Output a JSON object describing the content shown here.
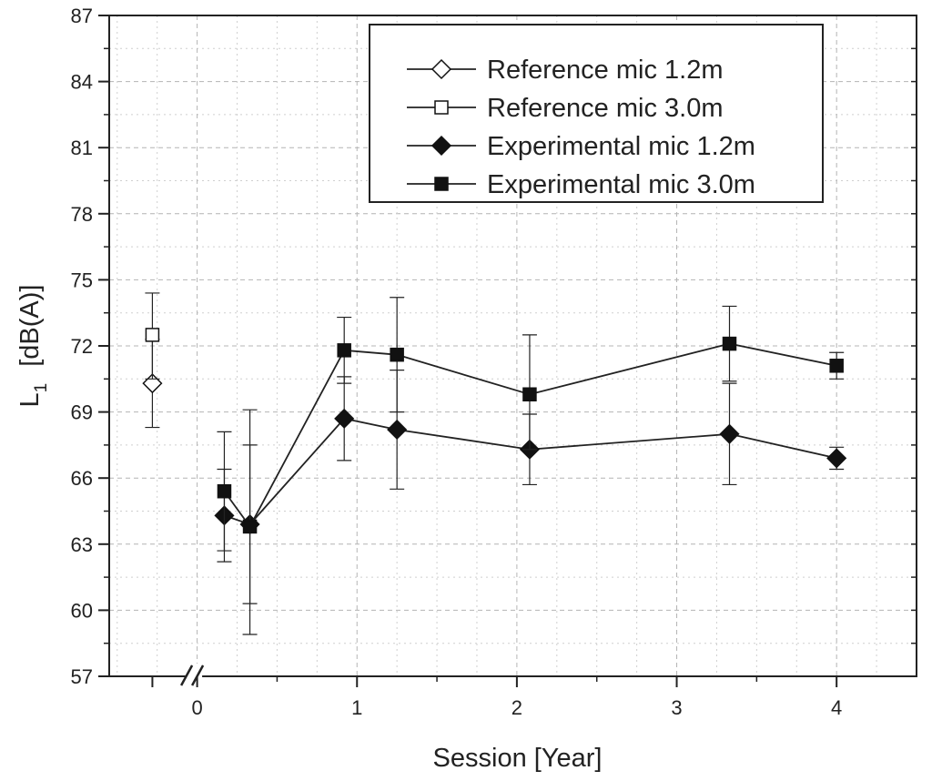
{
  "chart_data": {
    "type": "scatter",
    "title": "",
    "xlabel": "Session   [Year]",
    "ylabel": "L",
    "ylabel_subscript": "1",
    "ylabel_unit": "[dB(A)]",
    "xlim": [
      -0.55,
      4.5
    ],
    "ylim": [
      57,
      87
    ],
    "yticks": [
      57,
      60,
      63,
      66,
      69,
      72,
      75,
      78,
      81,
      84,
      87
    ],
    "xticks": [
      0,
      1,
      2,
      3,
      4
    ],
    "axis_break_at": -0.02,
    "grid": true,
    "legend_position": "top-right",
    "series": [
      {
        "name": "Reference mic 1.2m",
        "marker": "diamond-open",
        "connected": false,
        "points": [
          {
            "x": -0.28,
            "y": 70.3,
            "err_high": 72.3,
            "err_low": 68.3
          }
        ]
      },
      {
        "name": "Reference mic 3.0m",
        "marker": "square-open",
        "connected": false,
        "points": [
          {
            "x": -0.28,
            "y": 72.5,
            "err_high": 74.4,
            "err_low": 70.5
          }
        ]
      },
      {
        "name": "Experimental mic 1.2m",
        "marker": "diamond-filled",
        "connected": true,
        "points": [
          {
            "x": 0.17,
            "y": 64.3,
            "err_high": 66.4,
            "err_low": 62.2
          },
          {
            "x": 0.33,
            "y": 63.9,
            "err_high": 69.1,
            "err_low": 58.9
          },
          {
            "x": 0.92,
            "y": 68.7,
            "err_high": 70.6,
            "err_low": 66.8
          },
          {
            "x": 1.25,
            "y": 68.2,
            "err_high": 70.9,
            "err_low": 65.5
          },
          {
            "x": 2.08,
            "y": 67.3,
            "err_high": 68.9,
            "err_low": 65.7
          },
          {
            "x": 3.33,
            "y": 68.0,
            "err_high": 70.3,
            "err_low": 65.7
          },
          {
            "x": 4.0,
            "y": 66.9,
            "err_high": 67.4,
            "err_low": 66.4
          }
        ]
      },
      {
        "name": "Experimental mic 3.0m",
        "marker": "square-filled",
        "connected": true,
        "points": [
          {
            "x": 0.17,
            "y": 65.4,
            "err_high": 68.1,
            "err_low": 62.7
          },
          {
            "x": 0.33,
            "y": 63.8,
            "err_high": 67.5,
            "err_low": 60.3
          },
          {
            "x": 0.92,
            "y": 71.8,
            "err_high": 73.3,
            "err_low": 70.3
          },
          {
            "x": 1.25,
            "y": 71.6,
            "err_high": 74.2,
            "err_low": 69.0
          },
          {
            "x": 2.08,
            "y": 69.8,
            "err_high": 72.5,
            "err_low": 67.3
          },
          {
            "x": 3.33,
            "y": 72.1,
            "err_high": 73.8,
            "err_low": 70.4
          },
          {
            "x": 4.0,
            "y": 71.1,
            "err_high": 71.7,
            "err_low": 70.5
          }
        ]
      }
    ]
  }
}
